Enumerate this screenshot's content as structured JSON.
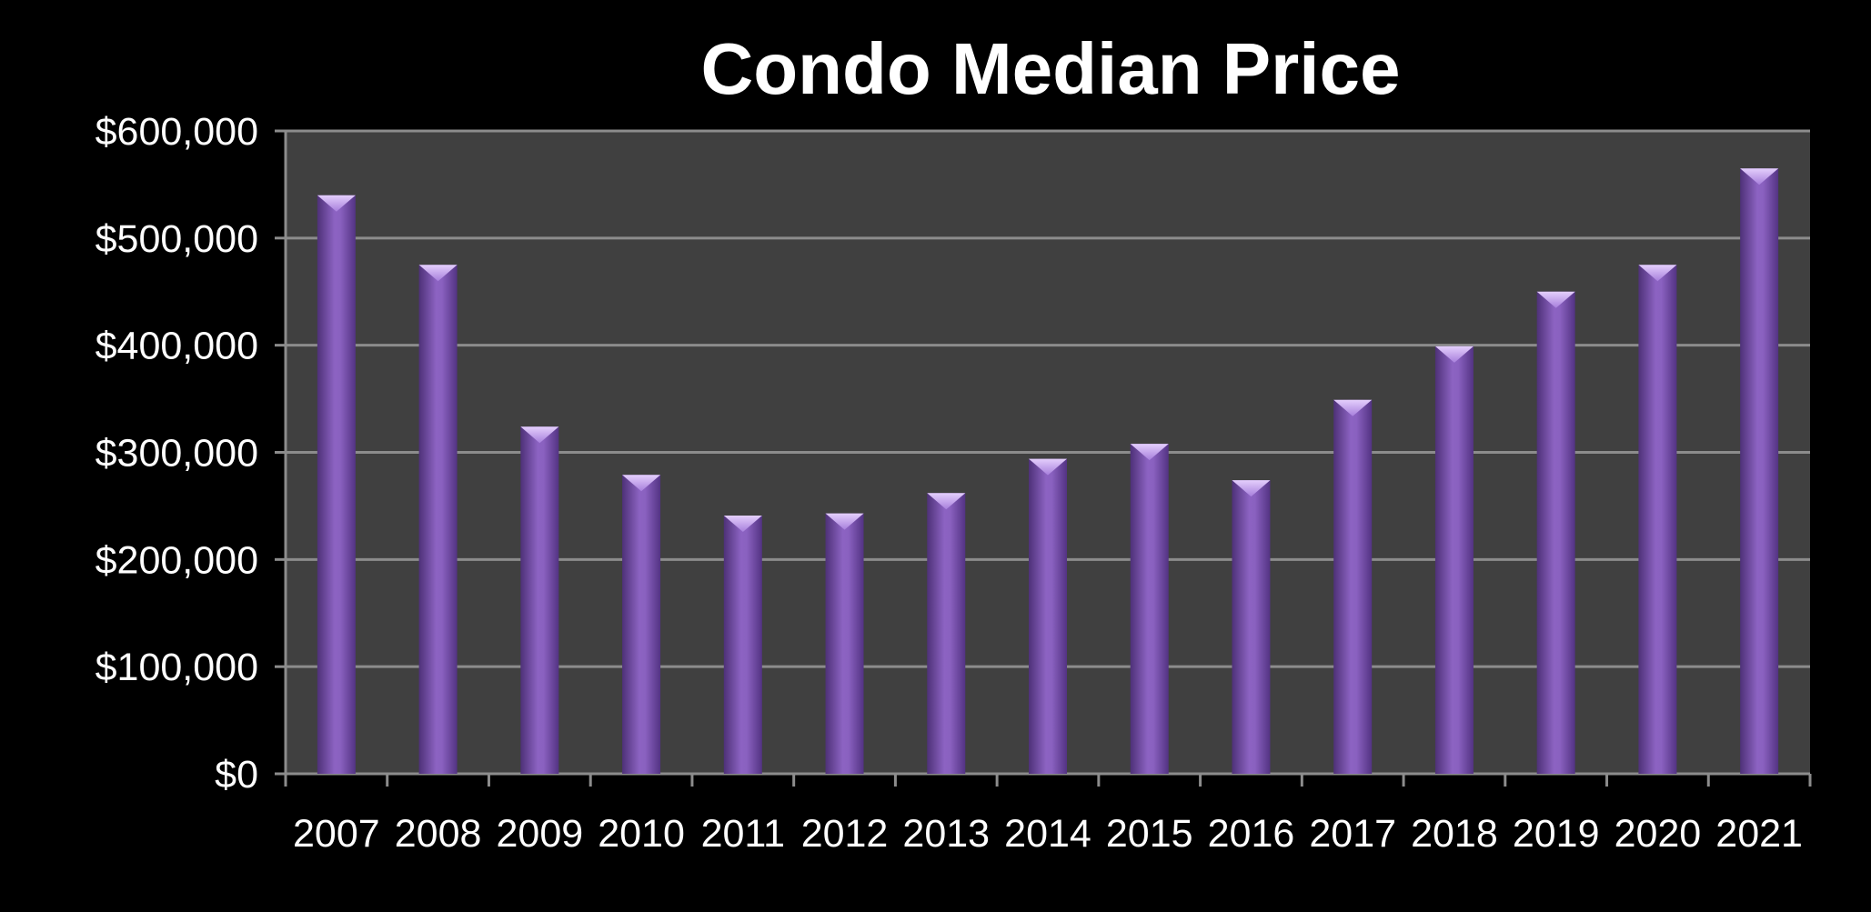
{
  "chart_data": {
    "type": "bar",
    "title": "Condo Median Price",
    "xlabel": "",
    "ylabel": "",
    "categories": [
      "2007",
      "2008",
      "2009",
      "2010",
      "2011",
      "2012",
      "2013",
      "2014",
      "2015",
      "2016",
      "2017",
      "2018",
      "2019",
      "2020",
      "2021"
    ],
    "series": [
      {
        "values": [
          540000,
          475000,
          324000,
          279000,
          241000,
          243000,
          262000,
          294000,
          308000,
          274000,
          349000,
          399000,
          450000,
          475000,
          565000
        ]
      }
    ],
    "ylim": [
      0,
      600000
    ],
    "y_ticks": [
      0,
      100000,
      200000,
      300000,
      400000,
      500000,
      600000
    ],
    "y_tick_labels": [
      "$0",
      "$100,000",
      "$200,000",
      "$300,000",
      "$400,000",
      "$500,000",
      "$600,000"
    ],
    "grid": true,
    "legend": "none",
    "colors": {
      "background": "#000000",
      "plot_area": "#404040",
      "gridline": "#8c8c8c",
      "bar": "#7d56b0",
      "bar_dark": "#4e3178",
      "bar_top": "#c8a6f3",
      "text": "#ffffff"
    }
  }
}
